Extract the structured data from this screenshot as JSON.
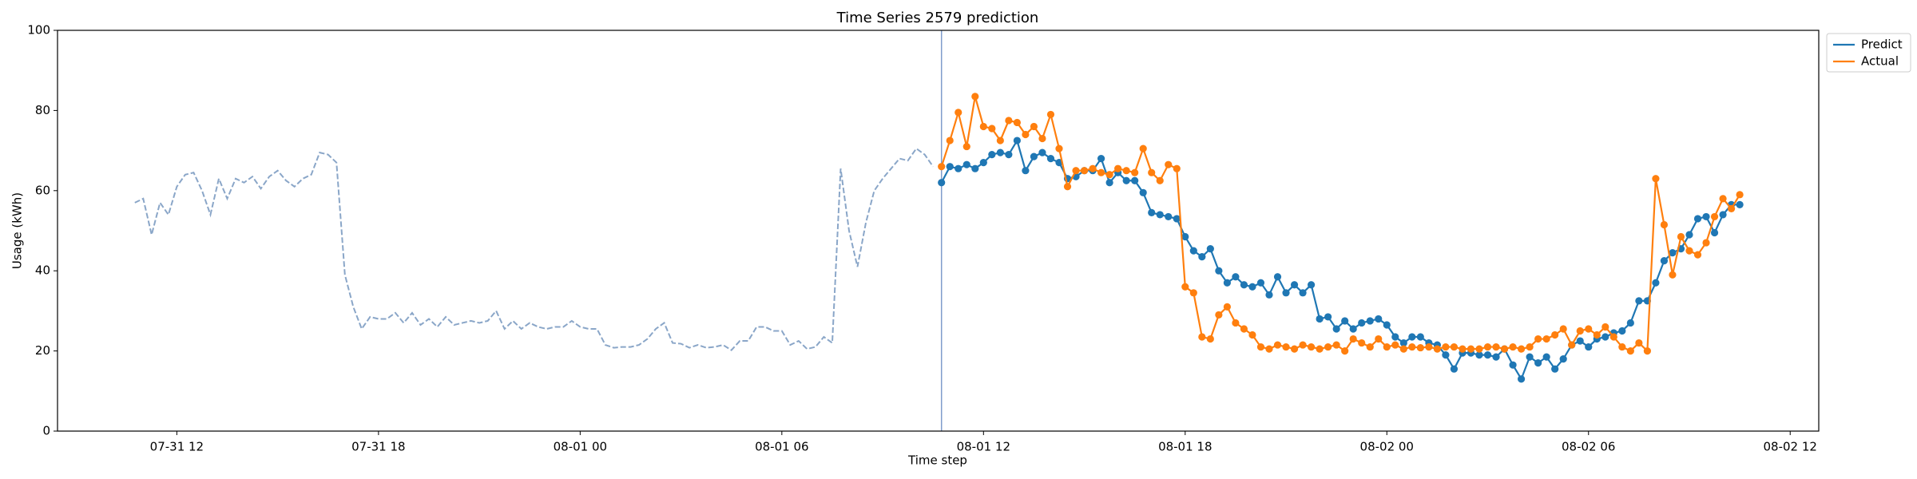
{
  "chart_data": {
    "type": "line",
    "title": "Time Series 2579 prediction",
    "xlabel": "Time step",
    "ylabel": "Usage (kWh)",
    "xlim": [
      8.45,
      60.85
    ],
    "ylim": [
      0,
      100
    ],
    "xticks": [
      {
        "value": 12,
        "label": "07-31 12"
      },
      {
        "value": 18,
        "label": "07-31 18"
      },
      {
        "value": 24,
        "label": "08-01 00"
      },
      {
        "value": 30,
        "label": "08-01 06"
      },
      {
        "value": 36,
        "label": "08-01 12"
      },
      {
        "value": 42,
        "label": "08-01 18"
      },
      {
        "value": 48,
        "label": "08-02 00"
      },
      {
        "value": 54,
        "label": "08-02 06"
      },
      {
        "value": 60,
        "label": "08-02 12"
      }
    ],
    "yticks": [
      0,
      20,
      40,
      60,
      80,
      100
    ],
    "vline": 34.75,
    "vline_color": "#7f9ccb",
    "legend": "upper right outside",
    "history": {
      "color": "#8aa6c8",
      "linestyle": "dashed",
      "x": [
        10.75,
        11,
        11.25,
        11.5,
        11.75,
        12,
        12.25,
        12.5,
        12.75,
        13,
        13.25,
        13.5,
        13.75,
        14,
        14.25,
        14.5,
        14.75,
        15,
        15.25,
        15.5,
        15.75,
        16,
        16.25,
        16.5,
        16.75,
        17,
        17.25,
        17.5,
        17.75,
        18,
        18.25,
        18.5,
        18.75,
        19,
        19.25,
        19.5,
        19.75,
        20,
        20.25,
        20.5,
        20.75,
        21,
        21.25,
        21.5,
        21.75,
        22,
        22.25,
        22.5,
        22.75,
        23,
        23.25,
        23.5,
        23.75,
        24,
        24.25,
        24.5,
        24.75,
        25,
        25.25,
        25.5,
        25.75,
        26,
        26.25,
        26.5,
        26.75,
        27,
        27.25,
        27.5,
        27.75,
        28,
        28.25,
        28.5,
        28.75,
        29,
        29.25,
        29.5,
        29.75,
        30,
        30.25,
        30.5,
        30.75,
        31,
        31.25,
        31.5,
        31.75,
        32,
        32.25,
        32.5,
        32.75,
        33,
        33.25,
        33.5,
        33.75,
        34,
        34.25,
        34.5
      ],
      "values": [
        57,
        58,
        49,
        57,
        54,
        61,
        64,
        64.5,
        60,
        54,
        63,
        58,
        63,
        62,
        63.5,
        60.5,
        63.5,
        65,
        62.5,
        61,
        63,
        64,
        69.5,
        69,
        67,
        39,
        31,
        25.5,
        28.5,
        28,
        28,
        29.5,
        27,
        29.5,
        26.5,
        28,
        26,
        28.5,
        26.5,
        27,
        27.5,
        27,
        27.5,
        30,
        25.5,
        27.5,
        25.5,
        27,
        26,
        25.5,
        26,
        26,
        27.5,
        26,
        25.5,
        25.5,
        21.5,
        20.8,
        21,
        21,
        21.5,
        23,
        25.5,
        27,
        22,
        21.8,
        20.8,
        21.5,
        20.8,
        21,
        21.5,
        20.2,
        22.5,
        22.5,
        26,
        26,
        25,
        25,
        21.5,
        22.5,
        20.5,
        21,
        23.5,
        22,
        65.5,
        50,
        41,
        52,
        60,
        63,
        65.5,
        68,
        67.5,
        70.5,
        69,
        66
      ]
    },
    "x": [
      34.75,
      35,
      35.25,
      35.5,
      35.75,
      36,
      36.25,
      36.5,
      36.75,
      37,
      37.25,
      37.5,
      37.75,
      38,
      38.25,
      38.5,
      38.75,
      39,
      39.25,
      39.5,
      39.75,
      40,
      40.25,
      40.5,
      40.75,
      41,
      41.25,
      41.5,
      41.75,
      42,
      42.25,
      42.5,
      42.75,
      43,
      43.25,
      43.5,
      43.75,
      44,
      44.25,
      44.5,
      44.75,
      45,
      45.25,
      45.5,
      45.75,
      46,
      46.25,
      46.5,
      46.75,
      47,
      47.25,
      47.5,
      47.75,
      48,
      48.25,
      48.5,
      48.75,
      49,
      49.25,
      49.5,
      49.75,
      50,
      50.25,
      50.5,
      50.75,
      51,
      51.25,
      51.5,
      51.75,
      52,
      52.25,
      52.5,
      52.75,
      53,
      53.25,
      53.5,
      53.75,
      54,
      54.25,
      54.5,
      54.75,
      55,
      55.25,
      55.5,
      55.75,
      56,
      56.25,
      56.5,
      56.75,
      57,
      57.25,
      57.5,
      57.75,
      58,
      58.25,
      58.5
    ],
    "series": [
      {
        "name": "Predict",
        "color": "#1f77b4",
        "marker": "o",
        "values": [
          62,
          66,
          65.5,
          66.5,
          65.5,
          67,
          69,
          69.5,
          69,
          72.5,
          65,
          68.5,
          69.5,
          68,
          67,
          63,
          63.5,
          65,
          65,
          68,
          62,
          64.5,
          62.5,
          62.5,
          59.5,
          54.5,
          54,
          53.5,
          53,
          48.5,
          45,
          43.5,
          45.5,
          40,
          37,
          38.5,
          36.5,
          36,
          37,
          34,
          38.5,
          34.5,
          36.5,
          34.5,
          36.5,
          28,
          28.5,
          25.5,
          27.5,
          25.5,
          27,
          27.5,
          28,
          26.5,
          23.5,
          22,
          23.5,
          23.5,
          22,
          21.5,
          19,
          15.5,
          19.5,
          19.5,
          19,
          19,
          18.5,
          20.5,
          16.5,
          13,
          18.5,
          17,
          18.5,
          15.5,
          18,
          21.5,
          22.5,
          21,
          23,
          23.5,
          24.5,
          25,
          27,
          32.5,
          32.5,
          37,
          42.5,
          44.5,
          45.5,
          49,
          53,
          53.5,
          49.5,
          54,
          56.5,
          56.5
        ]
      },
      {
        "name": "Actual",
        "color": "#ff7f0e",
        "marker": "o",
        "values": [
          66,
          72.5,
          79.5,
          71,
          83.5,
          76,
          75.5,
          72.5,
          77.5,
          77,
          74,
          76,
          73,
          79,
          70.5,
          61,
          65,
          65,
          65.5,
          64.5,
          64,
          65.5,
          65,
          64.5,
          70.5,
          64.5,
          62.5,
          66.5,
          65.5,
          36,
          34.5,
          23.5,
          23,
          29,
          31,
          27,
          25.5,
          24,
          21,
          20.5,
          21.5,
          21,
          20.5,
          21.5,
          21,
          20.5,
          21,
          21.5,
          20,
          23,
          22,
          21,
          23,
          21,
          21.5,
          20.5,
          21,
          20.8,
          21,
          20.5,
          21,
          21,
          20.5,
          20.5,
          20.5,
          21,
          21,
          20.5,
          21,
          20.5,
          21,
          23,
          23,
          24,
          25.5,
          21.5,
          25,
          25.5,
          24,
          26,
          23.5,
          21,
          20,
          22,
          20,
          63,
          51.5,
          39,
          48.5,
          45,
          44,
          47,
          53.5,
          58,
          55.5,
          59
        ]
      }
    ]
  }
}
